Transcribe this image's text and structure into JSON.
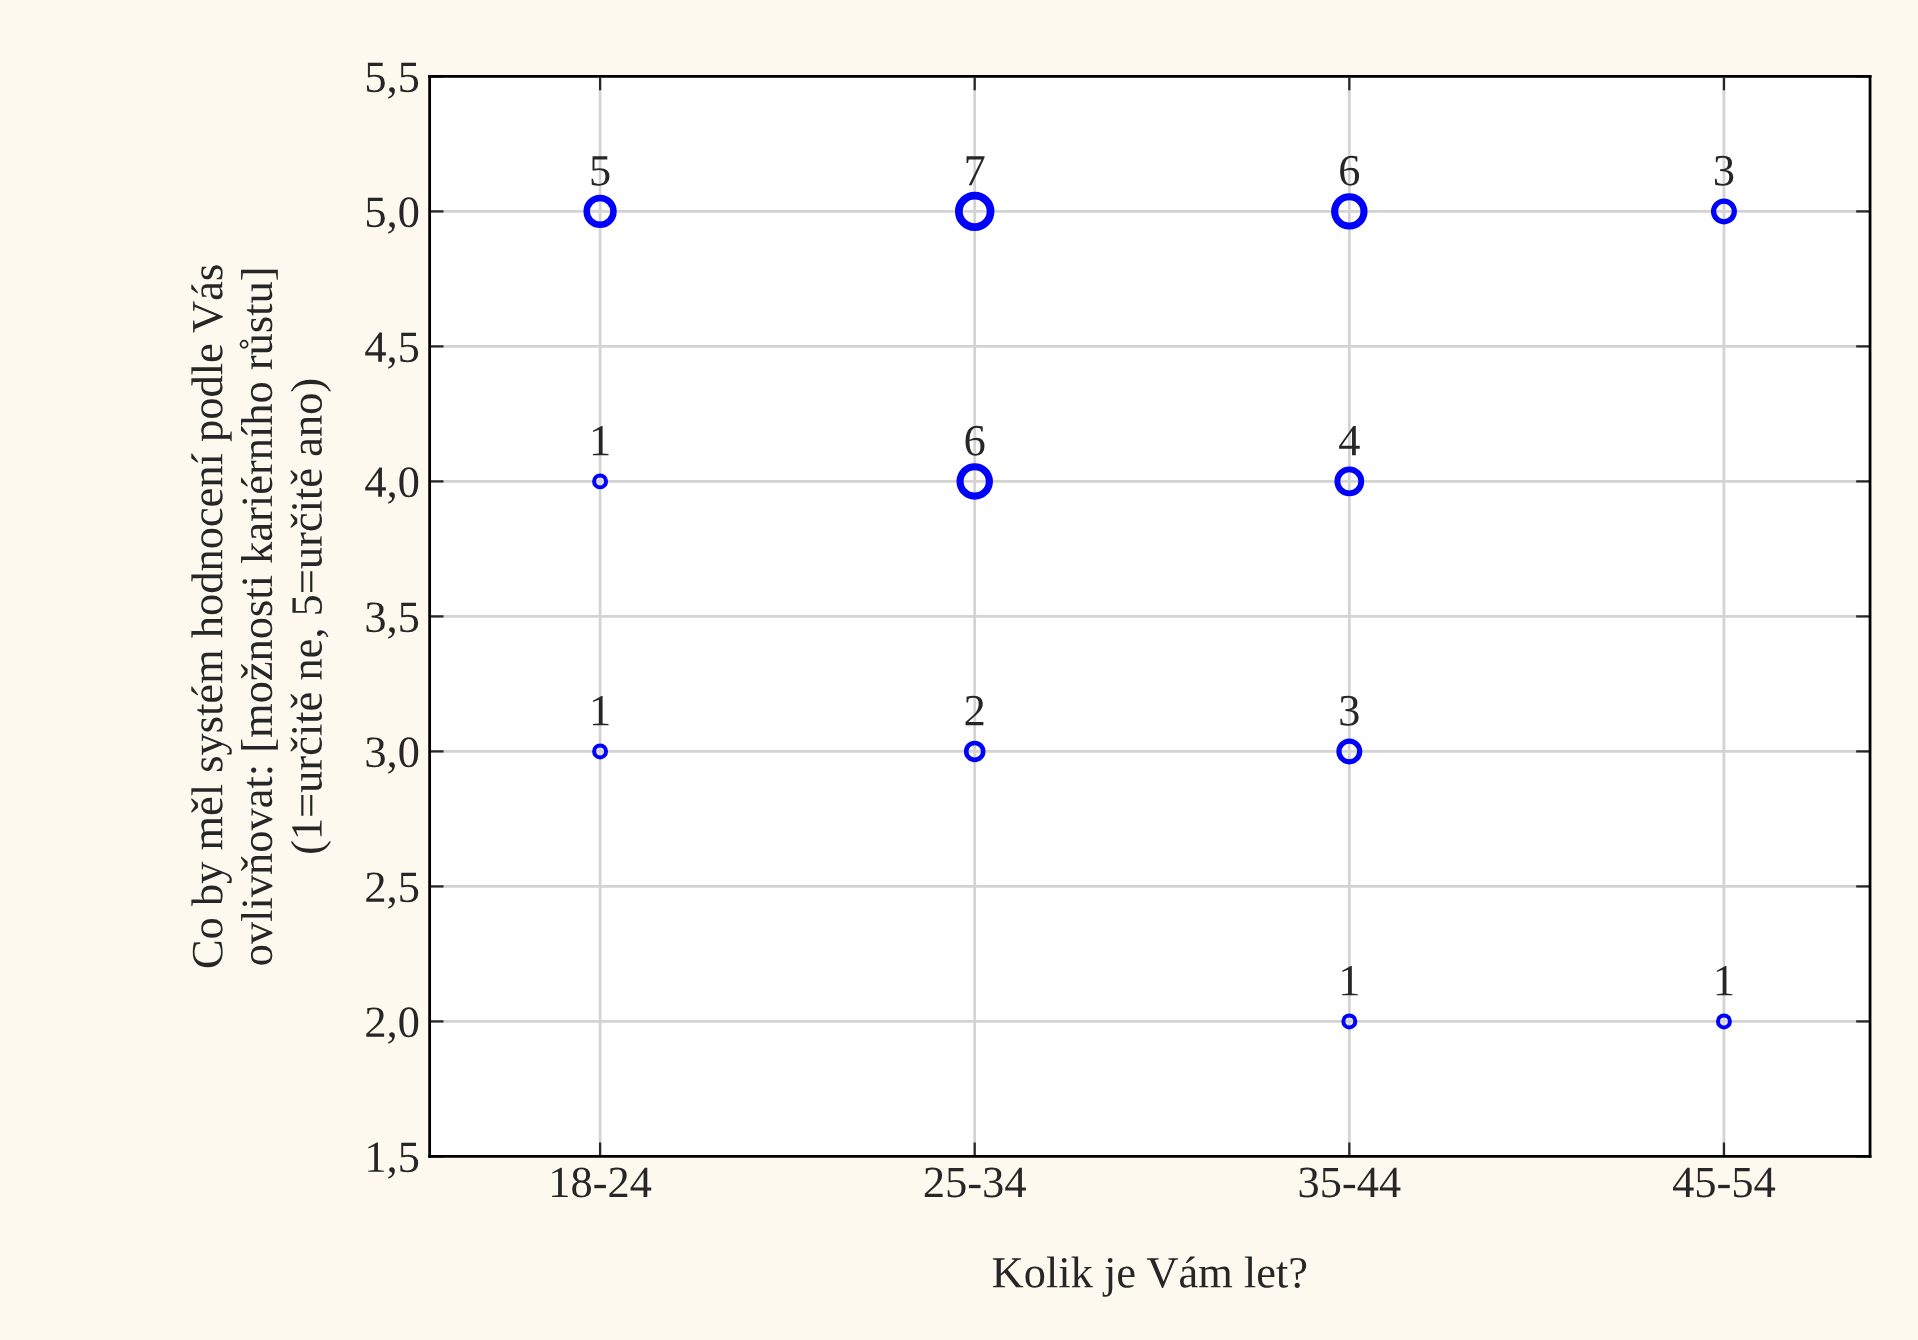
{
  "chart_data": {
    "type": "bubble",
    "xlabel": "Kolik je Vám let?",
    "ylabel": "Co by měl systém hodnocení podle Vás\novlivňovat: [možnosti kariérního růstu]\n(1=určitě ne, 5=určitě ano)",
    "categories": [
      "18-24",
      "25-34",
      "35-44",
      "45-54"
    ],
    "series": [
      {
        "color": "#0000ff",
        "x": [
          "18-24",
          "18-24",
          "18-24",
          "25-34",
          "25-34",
          "25-34",
          "35-44",
          "35-44",
          "35-44",
          "35-44",
          "45-54",
          "45-54"
        ],
        "values": [
          5.0,
          4.0,
          3.0,
          5.0,
          4.0,
          3.0,
          5.0,
          4.0,
          3.0,
          2.0,
          5.0,
          2.0
        ],
        "sizes": [
          0.714,
          0.143,
          0.143,
          1,
          0.857,
          0.286,
          0.857,
          0.571,
          0.429,
          0.143,
          0.429,
          0.143
        ]
      }
    ],
    "annotations": [
      {
        "text": "5",
        "x": "18-24",
        "y": 5.0
      },
      {
        "text": "1",
        "x": "18-24",
        "y": 4.0
      },
      {
        "text": "1",
        "x": "18-24",
        "y": 3.0
      },
      {
        "text": "7",
        "x": "25-34",
        "y": 5.0
      },
      {
        "text": "6",
        "x": "25-34",
        "y": 4.0
      },
      {
        "text": "2",
        "x": "25-34",
        "y": 3.0
      },
      {
        "text": "6",
        "x": "35-44",
        "y": 5.0
      },
      {
        "text": "4",
        "x": "35-44",
        "y": 4.0
      },
      {
        "text": "3",
        "x": "35-44",
        "y": 3.0
      },
      {
        "text": "1",
        "x": "35-44",
        "y": 2.0
      },
      {
        "text": "3",
        "x": "45-54",
        "y": 5.0
      },
      {
        "text": "1",
        "x": "45-54",
        "y": 2.0
      }
    ],
    "ylim": [
      1.5,
      5.5
    ],
    "yticks": [
      {
        "value": 1.5,
        "label": "1,5"
      },
      {
        "value": 2.0,
        "label": "2,0"
      },
      {
        "value": 2.5,
        "label": "2,5"
      },
      {
        "value": 3.0,
        "label": "3,0"
      },
      {
        "value": 3.5,
        "label": "3,5"
      },
      {
        "value": 4.0,
        "label": "4,0"
      },
      {
        "value": 4.5,
        "label": "4,5"
      },
      {
        "value": 5.0,
        "label": "5,0"
      },
      {
        "value": 5.5,
        "label": "5,5"
      }
    ],
    "grid": true,
    "marker": "circle"
  }
}
